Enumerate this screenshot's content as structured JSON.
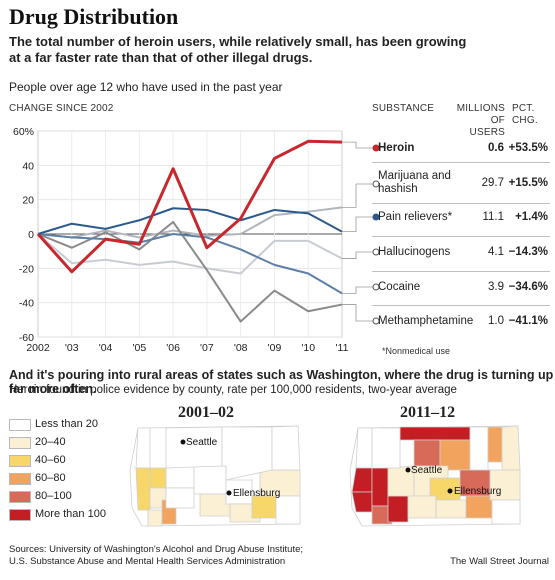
{
  "header": {
    "title": "Drug Distribution",
    "subtitle": "The total number of heroin users, while relatively small, has been growing at a far faster rate than that of other illegal drugs.",
    "note": "People over age 12 who have used in the past year"
  },
  "table": {
    "head_change": "CHANGE SINCE 2002",
    "head_substance": "SUBSTANCE",
    "head_millions": "MILLIONS OF USERS",
    "head_pct": "PCT. CHG.",
    "rows": [
      {
        "name": "Heroin",
        "millions": "0.6",
        "pct": "+53.5%"
      },
      {
        "name": "Marijuana and hashish",
        "millions": "29.7",
        "pct": "+15.5%"
      },
      {
        "name": "Pain relievers*",
        "millions": "11.1",
        "pct": "+1.4%"
      },
      {
        "name": "Hallucinogens",
        "millions": "4.1",
        "pct": "−14.3%"
      },
      {
        "name": "Cocaine",
        "millions": "3.9",
        "pct": "−34.6%"
      },
      {
        "name": "Methamphetamine",
        "millions": "1.0",
        "pct": "−41.1%"
      }
    ],
    "footnote": "*Nonmedical use"
  },
  "chart_data": {
    "type": "line",
    "x": [
      "2002",
      "'03",
      "'04",
      "'05",
      "'06",
      "'07",
      "'08",
      "'09",
      "'10",
      "'11"
    ],
    "ylim": [
      -60,
      60
    ],
    "yticks": [
      "60%",
      "40",
      "20",
      "0",
      "-20",
      "-40",
      "-60"
    ],
    "grid": true,
    "series": [
      {
        "name": "Heroin",
        "color": "#c8282d",
        "values": [
          0,
          -22,
          -3,
          -6,
          38,
          -8,
          9,
          44,
          54,
          53.5
        ]
      },
      {
        "name": "Marijuana and hashish",
        "color": "#b0b5bd",
        "values": [
          0,
          -2,
          2,
          -2,
          2,
          -1,
          0,
          11,
          13,
          15.5
        ]
      },
      {
        "name": "Pain relievers*",
        "color": "#2a5a8c",
        "values": [
          0,
          6,
          3,
          8,
          15,
          14,
          8,
          14,
          12,
          1.4
        ]
      },
      {
        "name": "Hallucinogens",
        "color": "#c8ccd2",
        "values": [
          0,
          -17,
          -15,
          -18,
          -16,
          -20,
          -23,
          -4,
          -4,
          -14.3
        ]
      },
      {
        "name": "Cocaine",
        "color": "#5b7fa6",
        "values": [
          0,
          -2,
          -3,
          -5,
          0,
          -2,
          -9,
          -18,
          -23,
          -34.6
        ]
      },
      {
        "name": "Methamphetamine",
        "color": "#8a8a8a",
        "values": [
          0,
          -8,
          1,
          -9,
          7,
          -21,
          -51,
          -33,
          -45,
          -41.1
        ]
      }
    ]
  },
  "maps": {
    "section_title": "And it's pouring into rural areas of states such as Washington, where the drug is turning up far more often.",
    "section_note": "Heroin found in police evidence by county, rate per 100,000 residents, two-year average",
    "legend": [
      {
        "label": "Less than 20",
        "color": "#ffffff"
      },
      {
        "label": "20–40",
        "color": "#fbf0d4"
      },
      {
        "label": "40–60",
        "color": "#f7d76a"
      },
      {
        "label": "60–80",
        "color": "#f2a35e"
      },
      {
        "label": "80–100",
        "color": "#d86a5a"
      },
      {
        "label": "More than 100",
        "color": "#c41e25"
      }
    ],
    "left_title": "2001–02",
    "right_title": "2011–12",
    "city_seattle": "Seattle",
    "city_ellensburg": "Ellensburg"
  },
  "footer": {
    "source_line1": "Sources: University of Washington's Alcohol and Drug Abuse Institute;",
    "source_line2": "U.S. Substance Abuse and Mental Health Services Administration",
    "credit": "The Wall Street Journal"
  }
}
